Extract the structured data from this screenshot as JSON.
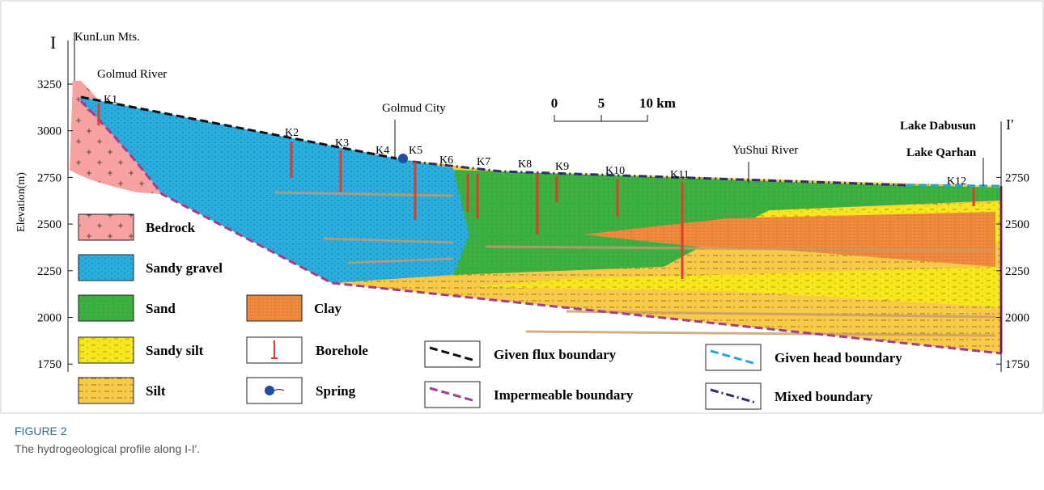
{
  "profile": {
    "section_start": "I",
    "section_end": "I′",
    "axis_label": "Elevation(m)",
    "left_ticks": [
      3250,
      3000,
      2750,
      2500,
      2250,
      2000,
      1750
    ],
    "right_ticks": [
      2750,
      2500,
      2250,
      2000,
      1750
    ],
    "places": [
      "KunLun Mts.",
      "Golmud River",
      "Golmud City",
      "YuShui River",
      "Lake Qarhan",
      "Lake Dabusun"
    ],
    "boreholes": [
      "K1",
      "K2",
      "K3",
      "K4",
      "K5",
      "K6",
      "K7",
      "K8",
      "K9",
      "K10",
      "K11",
      "K12"
    ],
    "scale": {
      "labels": [
        "0",
        "5",
        "10  km"
      ]
    }
  },
  "legend": [
    "Bedrock",
    "Sandy gravel",
    "Sand",
    "Sandy silt",
    "Silt",
    "Clay",
    "Borehole",
    "Spring",
    "Given flux boundary",
    "Impermeable boundary",
    "Given head boundary",
    "Mixed boundary"
  ],
  "caption": {
    "label": "FIGURE 2",
    "text": "The hydrogeological profile along I-I′."
  }
}
